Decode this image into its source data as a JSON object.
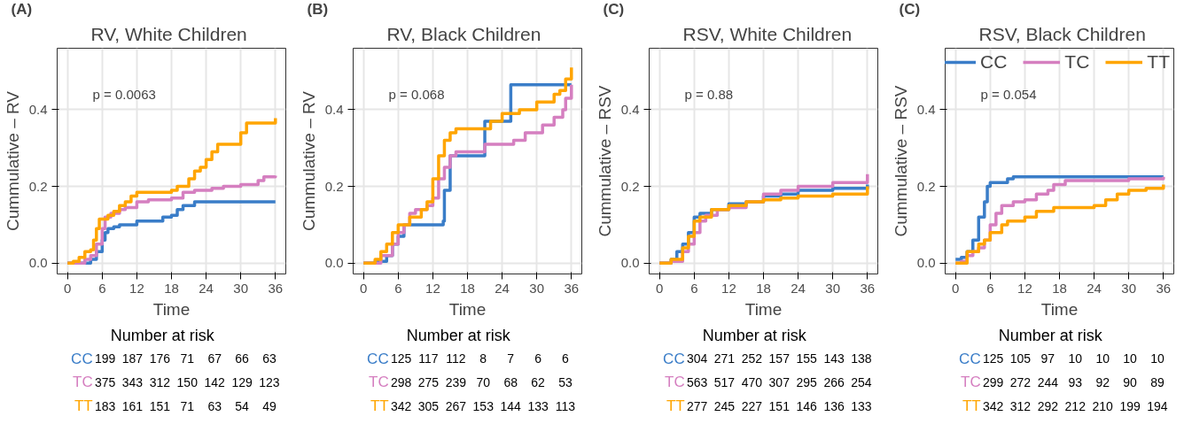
{
  "chart_data": [
    {
      "type": "step",
      "title": "RV, White Children",
      "xlabel": "Time",
      "ylabel": "Cummulative – RV",
      "xlim": [
        -1.8,
        37.8
      ],
      "ylim": [
        -0.028,
        0.56
      ],
      "xticks": [
        0,
        6,
        12,
        18,
        24,
        30,
        36
      ],
      "yticks": [
        {
          "value": 0,
          "label": "0.0"
        },
        {
          "value": 0.2,
          "label": "0.2"
        },
        {
          "value": 0.4,
          "label": "0.4"
        }
      ],
      "grid": true,
      "legend": false,
      "annotations": [
        "(A)",
        "p = 0.0063",
        "Number at risk",
        "199 187 176 71 67 66 63",
        "375 343 312 150 142 129 123",
        "183 161 151 71 63 54 49"
      ],
      "series": [
        {
          "name": "CC",
          "color": "#3a7dc8",
          "x": [
            0,
            3.5,
            4,
            5,
            6,
            6.5,
            7,
            8,
            9,
            12,
            16.5,
            18,
            19,
            20,
            22,
            36
          ],
          "values": [
            0,
            0,
            0.01,
            0.03,
            0.06,
            0.08,
            0.09,
            0.095,
            0.1,
            0.11,
            0.12,
            0.125,
            0.14,
            0.15,
            0.16,
            0.16
          ]
        },
        {
          "name": "TC",
          "color": "#d57fc0",
          "x": [
            0,
            3,
            4,
            5,
            6,
            6.5,
            7.5,
            9,
            10,
            12,
            14,
            18,
            20,
            22,
            25,
            27,
            30,
            33,
            34,
            36
          ],
          "values": [
            0,
            0.01,
            0.02,
            0.05,
            0.09,
            0.12,
            0.13,
            0.14,
            0.145,
            0.16,
            0.165,
            0.17,
            0.185,
            0.19,
            0.195,
            0.2,
            0.205,
            0.215,
            0.225,
            0.228
          ]
        },
        {
          "name": "TT",
          "color": "#ffa500",
          "x": [
            0,
            1,
            2,
            3,
            4,
            4.5,
            5,
            5.5,
            7,
            8,
            9,
            10,
            11,
            12,
            18,
            19,
            21,
            22,
            23,
            24,
            25,
            26,
            30,
            31,
            36
          ],
          "values": [
            0,
            0.005,
            0.015,
            0.03,
            0.035,
            0.06,
            0.09,
            0.115,
            0.125,
            0.135,
            0.15,
            0.16,
            0.175,
            0.185,
            0.19,
            0.2,
            0.22,
            0.24,
            0.25,
            0.27,
            0.29,
            0.31,
            0.34,
            0.365,
            0.378
          ]
        }
      ]
    },
    {
      "type": "step",
      "title": "RV, Black Children",
      "xlabel": "Time",
      "ylabel": "Cummulative – RV",
      "xlim": [
        -1.8,
        37.8
      ],
      "ylim": [
        -0.028,
        0.56
      ],
      "xticks": [
        0,
        6,
        12,
        18,
        24,
        30,
        36
      ],
      "yticks": [
        {
          "value": 0,
          "label": "0.0"
        },
        {
          "value": 0.2,
          "label": "0.2"
        },
        {
          "value": 0.4,
          "label": "0.4"
        }
      ],
      "grid": true,
      "legend": false,
      "annotations": [
        "(B)",
        "p = 0.068",
        "Number at risk",
        "125 117 112 8 7 6 6",
        "298 275 239 70 68 62 53",
        "342 305 267 153 144 133 113"
      ],
      "series": [
        {
          "name": "CC",
          "color": "#3a7dc8",
          "x": [
            0,
            2,
            4,
            5,
            6,
            7,
            13.8,
            14,
            15,
            21,
            25.5,
            36
          ],
          "values": [
            0,
            0.005,
            0.02,
            0.05,
            0.07,
            0.1,
            0.11,
            0.19,
            0.28,
            0.37,
            0.465,
            0.465
          ]
        },
        {
          "name": "TC",
          "color": "#d57fc0",
          "x": [
            0,
            3,
            5,
            6,
            7,
            8,
            9,
            11,
            12,
            13,
            14,
            15,
            16,
            21,
            26,
            28,
            31,
            33,
            34.5,
            35,
            36
          ],
          "values": [
            0,
            0.02,
            0.05,
            0.08,
            0.1,
            0.13,
            0.14,
            0.15,
            0.17,
            0.22,
            0.25,
            0.28,
            0.29,
            0.31,
            0.32,
            0.34,
            0.36,
            0.38,
            0.4,
            0.43,
            0.465
          ]
        },
        {
          "name": "TT",
          "color": "#ffa500",
          "x": [
            0,
            2,
            3,
            4,
            5,
            6,
            8,
            10,
            11,
            12,
            13,
            14,
            15,
            16,
            22,
            24,
            27,
            30,
            33,
            34,
            35,
            36
          ],
          "values": [
            0,
            0.01,
            0.03,
            0.05,
            0.08,
            0.1,
            0.12,
            0.14,
            0.16,
            0.22,
            0.28,
            0.32,
            0.34,
            0.35,
            0.37,
            0.39,
            0.4,
            0.42,
            0.44,
            0.45,
            0.48,
            0.51
          ]
        }
      ]
    },
    {
      "type": "step",
      "title": "RSV, White Children",
      "xlabel": "Time",
      "ylabel": "Cummulative – RSV",
      "xlim": [
        -1.8,
        37.8
      ],
      "ylim": [
        -0.028,
        0.56
      ],
      "xticks": [
        0,
        6,
        12,
        18,
        24,
        30,
        36
      ],
      "yticks": [
        {
          "value": 0,
          "label": "0.0"
        },
        {
          "value": 0.2,
          "label": "0.2"
        },
        {
          "value": 0.4,
          "label": "0.4"
        }
      ],
      "grid": true,
      "legend": false,
      "annotations": [
        "(C)",
        "p = 0.88",
        "Number at risk",
        "304 271 252 157 155 143 138",
        "563 517 470 307 295 266 254",
        "277 245 227 151 146 136 133"
      ],
      "series": [
        {
          "name": "CC",
          "color": "#3a7dc8",
          "x": [
            0,
            2,
            3,
            4,
            5,
            6,
            7,
            9,
            12,
            15,
            18,
            21,
            24,
            30,
            36
          ],
          "values": [
            0,
            0.01,
            0.03,
            0.05,
            0.08,
            0.12,
            0.13,
            0.14,
            0.155,
            0.16,
            0.175,
            0.18,
            0.19,
            0.195,
            0.205
          ]
        },
        {
          "name": "TC",
          "color": "#d57fc0",
          "x": [
            0,
            2,
            4,
            5,
            6,
            7,
            8,
            10,
            12,
            15,
            18,
            21,
            24,
            30,
            36
          ],
          "values": [
            0,
            0.005,
            0.03,
            0.05,
            0.08,
            0.11,
            0.125,
            0.14,
            0.145,
            0.16,
            0.18,
            0.19,
            0.2,
            0.21,
            0.232
          ]
        },
        {
          "name": "TT",
          "color": "#ffa500",
          "x": [
            0,
            2,
            4,
            5,
            6,
            7,
            9,
            12,
            15,
            18,
            21,
            24,
            30,
            36
          ],
          "values": [
            0,
            0.01,
            0.04,
            0.07,
            0.11,
            0.12,
            0.14,
            0.15,
            0.16,
            0.165,
            0.17,
            0.175,
            0.18,
            0.2
          ]
        }
      ]
    },
    {
      "type": "step",
      "title": "RSV, Black Children",
      "xlabel": "Time",
      "ylabel": "Cummulative – RSV",
      "xlim": [
        -1.8,
        37.8
      ],
      "ylim": [
        -0.028,
        0.56
      ],
      "xticks": [
        0,
        6,
        12,
        18,
        24,
        30,
        36
      ],
      "yticks": [
        {
          "value": 0,
          "label": "0.0"
        },
        {
          "value": 0.2,
          "label": "0.2"
        },
        {
          "value": 0.4,
          "label": "0.4"
        }
      ],
      "grid": true,
      "legend": "top right",
      "annotations": [
        "(C)",
        "p = 0.054",
        "Number at risk",
        "125 105 97 10 10 10 10",
        "299 272 244 93 92 90 89",
        "342 312 292 212 210 199 194"
      ],
      "series": [
        {
          "name": "CC",
          "color": "#3a7dc8",
          "x": [
            0,
            1,
            2,
            3,
            4,
            5,
            5.5,
            6,
            9,
            10,
            36
          ],
          "values": [
            0.01,
            0.015,
            0.03,
            0.06,
            0.12,
            0.16,
            0.2,
            0.21,
            0.22,
            0.225,
            0.225
          ]
        },
        {
          "name": "TC",
          "color": "#d57fc0",
          "x": [
            0,
            1,
            2,
            3,
            4,
            5,
            6,
            7,
            8,
            10,
            12,
            14,
            16,
            17,
            19,
            30,
            36
          ],
          "values": [
            0,
            0.005,
            0.02,
            0.03,
            0.04,
            0.06,
            0.1,
            0.13,
            0.15,
            0.16,
            0.165,
            0.18,
            0.19,
            0.205,
            0.215,
            0.22,
            0.225
          ]
        },
        {
          "name": "TT",
          "color": "#ffa500",
          "x": [
            0,
            2,
            4,
            5,
            6,
            8,
            9,
            12,
            14,
            17,
            24,
            26,
            28,
            30,
            33,
            36
          ],
          "values": [
            0,
            0.03,
            0.05,
            0.06,
            0.08,
            0.1,
            0.11,
            0.12,
            0.135,
            0.145,
            0.15,
            0.165,
            0.18,
            0.19,
            0.195,
            0.205
          ]
        }
      ]
    }
  ]
}
